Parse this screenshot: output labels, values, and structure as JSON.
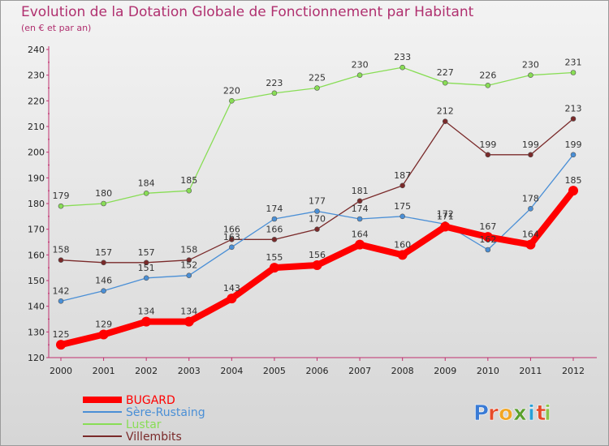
{
  "chart_data": {
    "type": "line",
    "title": "Evolution de la Dotation Globale de Fonctionnement par Habitant",
    "subtitle": "(en € et par an)",
    "xlabel": "",
    "ylabel": "",
    "x": [
      "2000",
      "2001",
      "2002",
      "2003",
      "2004",
      "2005",
      "2006",
      "2007",
      "2008",
      "2009",
      "2010",
      "2011",
      "2012"
    ],
    "ylim": [
      120,
      240
    ],
    "yticks": [
      120,
      130,
      140,
      150,
      160,
      170,
      180,
      190,
      200,
      210,
      220,
      230,
      240
    ],
    "grid": "none",
    "legend_position": "bottom-left",
    "series": [
      {
        "name": "BUGARD",
        "color": "#ff0000",
        "label_color": "#ffffff",
        "values": [
          125,
          129,
          134,
          134,
          143,
          155,
          156,
          164,
          160,
          171,
          167,
          164,
          185
        ]
      },
      {
        "name": "Sère-Rustaing",
        "color": "#4a8fd6",
        "label_color": "#333333",
        "values": [
          142,
          146,
          151,
          152,
          163,
          174,
          177,
          174,
          175,
          172,
          162,
          178,
          199
        ]
      },
      {
        "name": "Lustar",
        "color": "#88dd55",
        "label_color": "#333333",
        "values": [
          179,
          180,
          184,
          185,
          220,
          223,
          225,
          230,
          233,
          227,
          226,
          230,
          231
        ]
      },
      {
        "name": "Villembits",
        "color": "#7a2a2a",
        "label_color": "#333333",
        "values": [
          158,
          157,
          157,
          158,
          166,
          166,
          170,
          181,
          187,
          212,
          199,
          199,
          213
        ]
      }
    ]
  },
  "brand": {
    "name": "Proxiti",
    "letters": [
      "P",
      "r",
      "o",
      "x",
      "i",
      "t",
      "i"
    ],
    "letter_colors": [
      "#3a7bd5",
      "#e64b2a",
      "#f2a623",
      "#5aa02c",
      "#2a9fd6",
      "#e64b2a",
      "#8bc34a"
    ]
  }
}
